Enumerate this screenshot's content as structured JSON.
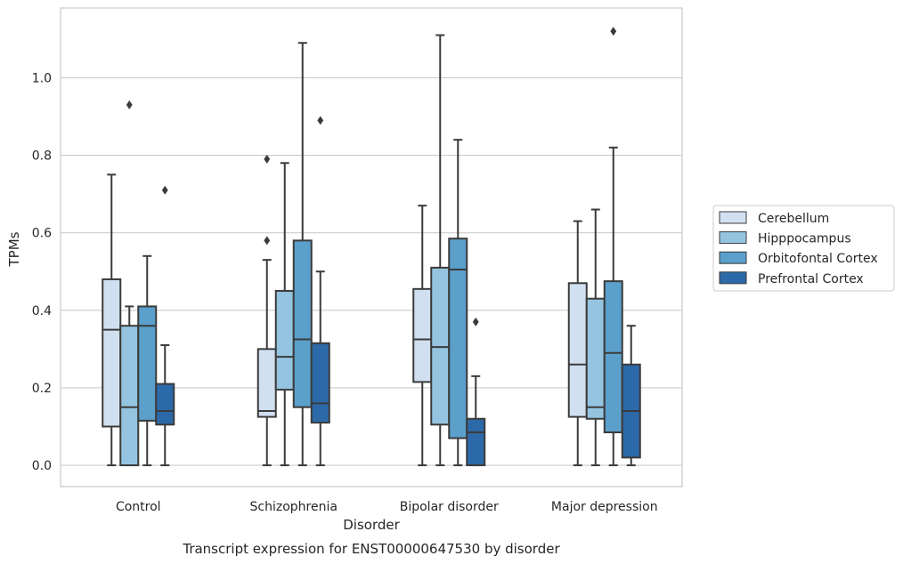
{
  "chart_data": {
    "type": "boxplot",
    "title": "Transcript expression for ENST00000647530 by disorder",
    "xlabel": "Disorder",
    "ylabel": "TPMs",
    "ylim": [
      -0.055,
      1.18
    ],
    "yticks": [
      0.0,
      0.2,
      0.4,
      0.6,
      0.8,
      1.0
    ],
    "ytick_labels": [
      "0.0",
      "0.2",
      "0.4",
      "0.6",
      "0.8",
      "1.0"
    ],
    "grid": "horizontal",
    "legend_position": "right",
    "categories": [
      "Control",
      "Schizophrenia",
      "Bipolar disorder",
      "Major depression"
    ],
    "series": [
      {
        "name": "Cerebellum",
        "color": "#d1e0f0",
        "boxes": [
          {
            "whislo": 0.0,
            "q1": 0.1,
            "med": 0.35,
            "q3": 0.48,
            "whishi": 0.75,
            "fliers": []
          },
          {
            "whislo": 0.0,
            "q1": 0.125,
            "med": 0.14,
            "q3": 0.3,
            "whishi": 0.53,
            "fliers": [
              0.58,
              0.79
            ]
          },
          {
            "whislo": 0.0,
            "q1": 0.215,
            "med": 0.325,
            "q3": 0.455,
            "whishi": 0.67,
            "fliers": []
          },
          {
            "whislo": 0.0,
            "q1": 0.125,
            "med": 0.26,
            "q3": 0.47,
            "whishi": 0.63,
            "fliers": []
          }
        ]
      },
      {
        "name": "Hipppocampus",
        "color": "#94c4df",
        "boxes": [
          {
            "whislo": 0.0,
            "q1": 0.0,
            "med": 0.15,
            "q3": 0.36,
            "whishi": 0.41,
            "fliers": [
              0.93
            ]
          },
          {
            "whislo": 0.0,
            "q1": 0.195,
            "med": 0.28,
            "q3": 0.45,
            "whishi": 0.78,
            "fliers": []
          },
          {
            "whislo": 0.0,
            "q1": 0.105,
            "med": 0.305,
            "q3": 0.51,
            "whishi": 1.11,
            "fliers": []
          },
          {
            "whislo": 0.0,
            "q1": 0.12,
            "med": 0.15,
            "q3": 0.43,
            "whishi": 0.66,
            "fliers": []
          }
        ]
      },
      {
        "name": "Orbitofontal Cortex",
        "color": "#5b9fcb",
        "boxes": [
          {
            "whislo": 0.0,
            "q1": 0.115,
            "med": 0.36,
            "q3": 0.41,
            "whishi": 0.54,
            "fliers": []
          },
          {
            "whislo": 0.0,
            "q1": 0.15,
            "med": 0.325,
            "q3": 0.58,
            "whishi": 1.09,
            "fliers": []
          },
          {
            "whislo": 0.0,
            "q1": 0.07,
            "med": 0.505,
            "q3": 0.585,
            "whishi": 0.84,
            "fliers": []
          },
          {
            "whislo": 0.0,
            "q1": 0.085,
            "med": 0.29,
            "q3": 0.475,
            "whishi": 0.82,
            "fliers": [
              1.12
            ]
          }
        ]
      },
      {
        "name": "Prefrontal Cortex",
        "color": "#2c69a8",
        "boxes": [
          {
            "whislo": 0.0,
            "q1": 0.105,
            "med": 0.14,
            "q3": 0.21,
            "whishi": 0.31,
            "fliers": [
              0.71
            ]
          },
          {
            "whislo": 0.0,
            "q1": 0.11,
            "med": 0.16,
            "q3": 0.315,
            "whishi": 0.5,
            "fliers": [
              0.89
            ]
          },
          {
            "whislo": 0.0,
            "q1": 0.0,
            "med": 0.085,
            "q3": 0.12,
            "whishi": 0.23,
            "fliers": [
              0.37
            ]
          },
          {
            "whislo": 0.0,
            "q1": 0.02,
            "med": 0.14,
            "q3": 0.26,
            "whishi": 0.36,
            "fliers": []
          }
        ]
      }
    ]
  }
}
